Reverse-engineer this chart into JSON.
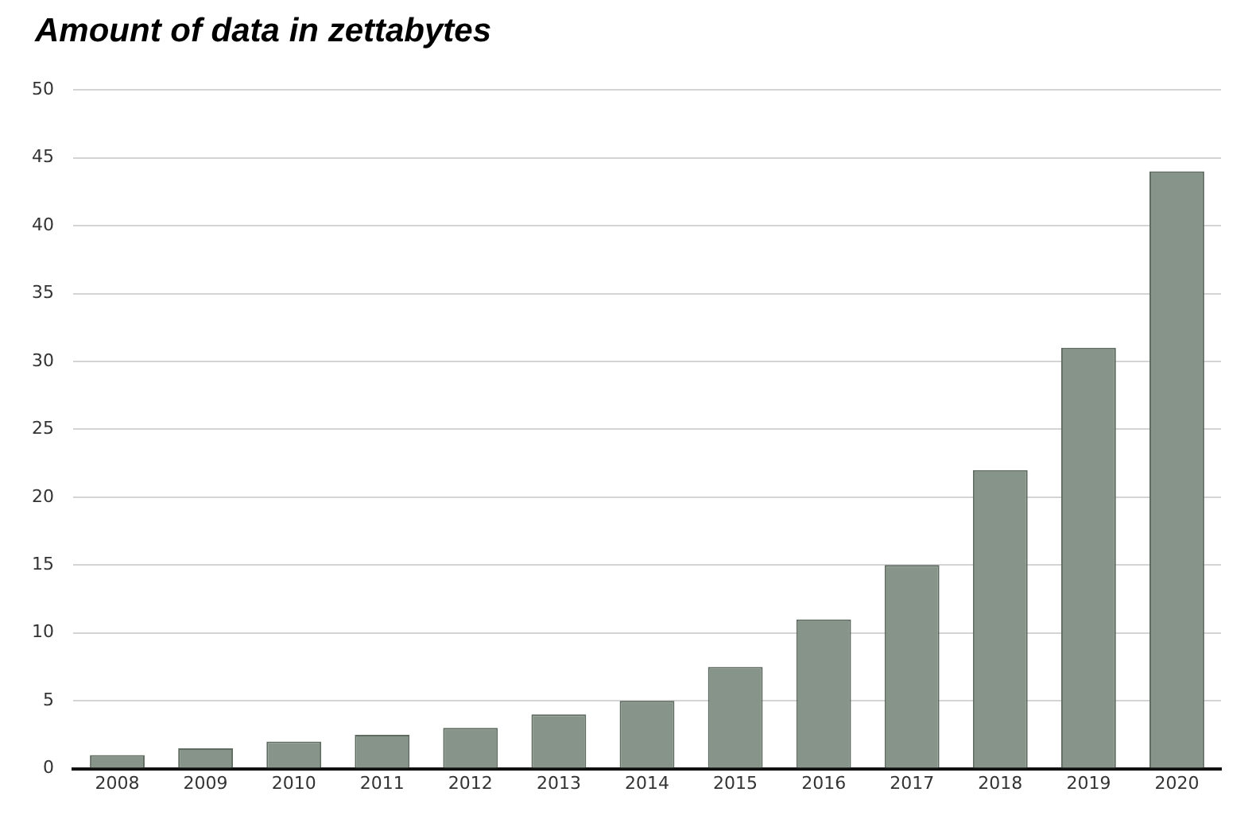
{
  "chart_data": {
    "type": "bar",
    "title": "Amount of data in zettabytes",
    "categories": [
      "2008",
      "2009",
      "2010",
      "2011",
      "2012",
      "2013",
      "2014",
      "2015",
      "2016",
      "2017",
      "2018",
      "2019",
      "2020"
    ],
    "values": [
      1,
      1.5,
      2,
      2.5,
      3,
      4,
      5,
      7.5,
      11,
      15,
      22,
      31,
      44
    ],
    "color": "#879489",
    "ylim": [
      0,
      50
    ],
    "yticks": [
      0,
      5,
      10,
      15,
      20,
      25,
      30,
      35,
      40,
      45,
      50
    ],
    "grid": "y",
    "legend": false
  }
}
